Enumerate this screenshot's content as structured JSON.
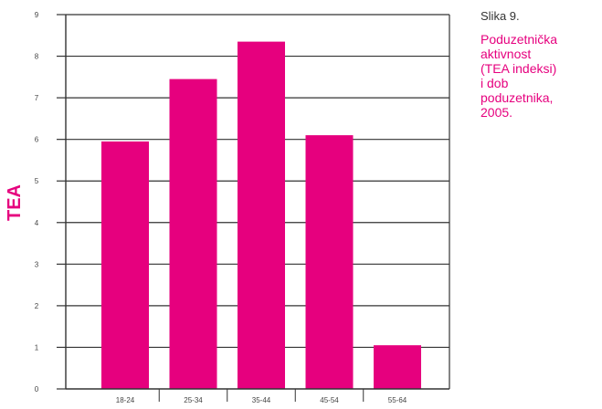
{
  "figure": {
    "label": "Slika 9.",
    "title_lines": [
      "Poduzetnička",
      "aktivnost",
      "(TEA indeksi)",
      "i dob",
      "poduzetnika,",
      "2005."
    ]
  },
  "colors": {
    "bar": "#e6007e",
    "accent_text": "#e6007e",
    "axis": "#333333",
    "grid": "#333333",
    "tick_text": "#444444"
  },
  "chart_data": {
    "type": "bar",
    "categories": [
      "18-24",
      "25-34",
      "35-44",
      "45-54",
      "55-64"
    ],
    "values": [
      5.95,
      7.45,
      8.35,
      6.1,
      1.05
    ],
    "ylabel": "TEA",
    "xlabel": "",
    "ylim": [
      0,
      9
    ],
    "yticks": [
      0,
      1,
      2,
      3,
      4,
      5,
      6,
      7,
      8,
      9
    ],
    "grid": true,
    "legend": "none"
  }
}
